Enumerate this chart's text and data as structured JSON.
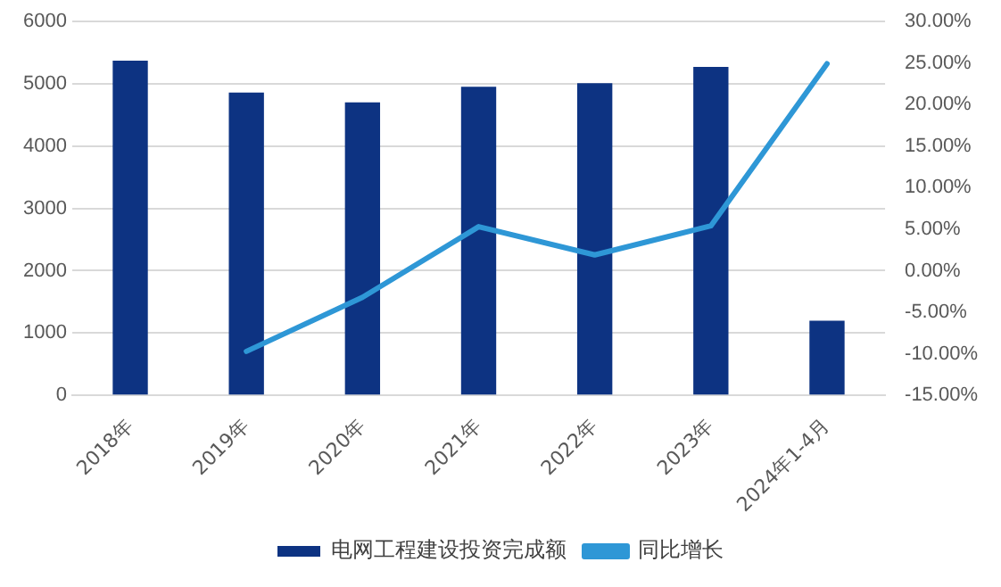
{
  "chart_data": {
    "type": "bar",
    "categories": [
      "2018年",
      "2019年",
      "2020年",
      "2021年",
      "2022年",
      "2023年",
      "2024年1-4月"
    ],
    "series": [
      {
        "name": "电网工程建设投资完成额",
        "color": "#0d3382",
        "values": [
          5370,
          4860,
          4700,
          4950,
          5010,
          5270,
          1200
        ]
      },
      {
        "name": "同比增长",
        "type": "line",
        "axis": "y2",
        "color": "#2e97d6",
        "values": [
          null,
          -9.7,
          -3.2,
          5.3,
          1.9,
          5.4,
          24.9
        ]
      }
    ],
    "ylim": [
      0,
      6000
    ],
    "yticks": [
      0,
      1000,
      2000,
      3000,
      4000,
      5000,
      6000
    ],
    "y2lim": [
      -15,
      30
    ],
    "y2ticks": [
      {
        "value": -15,
        "label": "-15.00%"
      },
      {
        "value": -10,
        "label": "-10.00%"
      },
      {
        "value": -5,
        "label": "-5.00%"
      },
      {
        "value": 0,
        "label": "0.00%"
      },
      {
        "value": 5,
        "label": "5.00%"
      },
      {
        "value": 10,
        "label": "10.00%"
      },
      {
        "value": 15,
        "label": "15.00%"
      },
      {
        "value": 20,
        "label": "20.00%"
      },
      {
        "value": 25,
        "label": "25.00%"
      },
      {
        "value": 30,
        "label": "30.00%"
      }
    ],
    "grid": "y",
    "legend": "bottom",
    "marker": "none"
  }
}
